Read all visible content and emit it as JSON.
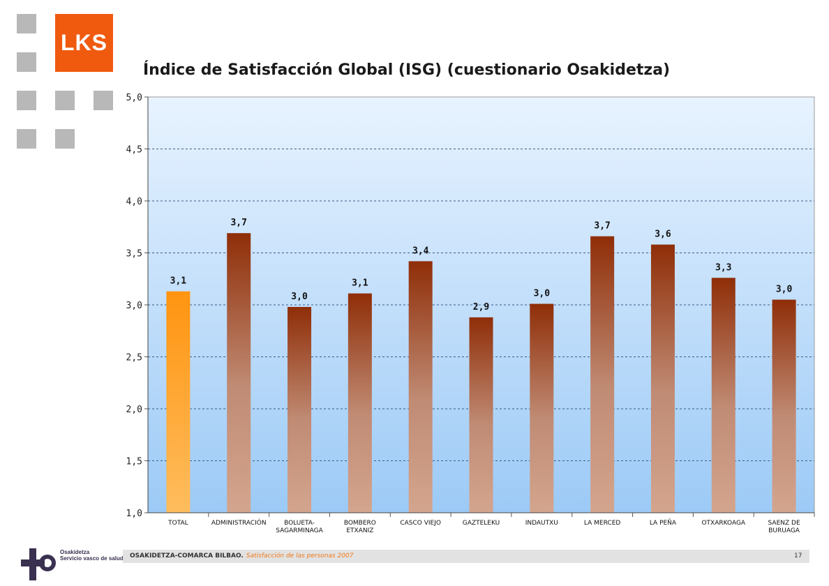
{
  "brand": {
    "logo_text": "LKS",
    "accent": "#f05a0f"
  },
  "slide": {
    "title": "Índice de Satisfacción Global (ISG) (cuestionario Osakidetza)"
  },
  "footer": {
    "org": "OSAKIDETZA-COMARCA BILBAO.",
    "subtitle": "Satisfacción de las personas 2007",
    "page": "17",
    "osakidetza_line1": "Osakidetza",
    "osakidetza_line2": "Servicio vasco de salud"
  },
  "chart_data": {
    "type": "bar",
    "title": "",
    "xlabel": "",
    "ylabel": "",
    "ylim": [
      1.0,
      5.0
    ],
    "yticks": [
      "1,0",
      "1,5",
      "2,0",
      "2,5",
      "3,0",
      "3,5",
      "4,0",
      "4,5",
      "5,0"
    ],
    "grid": true,
    "categories": [
      [
        "TOTAL"
      ],
      [
        "ADMINISTRACIÓN"
      ],
      [
        "BOLUETA-",
        "SAGARMINAGA"
      ],
      [
        "BOMBERO",
        "ETXANIZ"
      ],
      [
        "CASCO VIEJO"
      ],
      [
        "GAZTELEKU"
      ],
      [
        "INDAUTXU"
      ],
      [
        "LA MERCED"
      ],
      [
        "LA PEÑA"
      ],
      [
        "OTXARKOAGA"
      ],
      [
        "SAENZ DE",
        "BURUAGA"
      ]
    ],
    "values": [
      3.13,
      3.69,
      2.98,
      3.11,
      3.42,
      2.88,
      3.01,
      3.66,
      3.58,
      3.26,
      3.05
    ],
    "labels": [
      "3,1",
      "3,7",
      "3,0",
      "3,1",
      "3,4",
      "2,9",
      "3,0",
      "3,7",
      "3,6",
      "3,3",
      "3,0"
    ],
    "colors": {
      "total_top": "#ff9410",
      "total_bottom": "#ffbd5e",
      "bar_top": "#8f2e08",
      "bar_bottom": "#d4a58e",
      "plot_top": "#e8f3ff",
      "plot_bottom": "#9ccaf6",
      "grid": "#3a5a8a"
    }
  }
}
